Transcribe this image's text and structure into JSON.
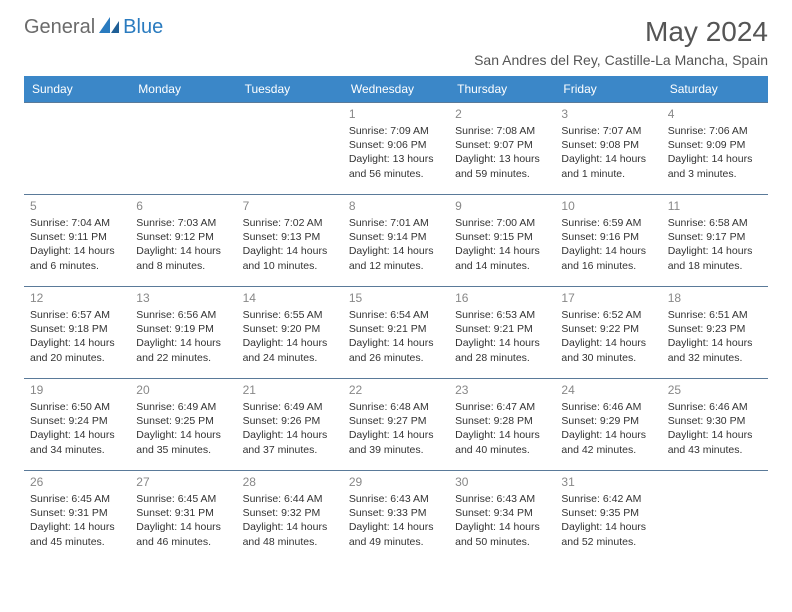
{
  "logo": {
    "text1": "General",
    "text2": "Blue"
  },
  "title": "May 2024",
  "subtitle": "San Andres del Rey, Castille-La Mancha, Spain",
  "colors": {
    "header_bg": "#3b87c8",
    "header_text": "#ffffff",
    "row_border": "#5a7a99",
    "day_num": "#888888",
    "body_text": "#333333",
    "logo_gray": "#6b6b6b",
    "logo_blue": "#2a7bbf",
    "title_color": "#555555"
  },
  "weekdays": [
    "Sunday",
    "Monday",
    "Tuesday",
    "Wednesday",
    "Thursday",
    "Friday",
    "Saturday"
  ],
  "weeks": [
    [
      null,
      null,
      null,
      {
        "day": "1",
        "sunrise": "7:09 AM",
        "sunset": "9:06 PM",
        "daylight": "13 hours and 56 minutes."
      },
      {
        "day": "2",
        "sunrise": "7:08 AM",
        "sunset": "9:07 PM",
        "daylight": "13 hours and 59 minutes."
      },
      {
        "day": "3",
        "sunrise": "7:07 AM",
        "sunset": "9:08 PM",
        "daylight": "14 hours and 1 minute."
      },
      {
        "day": "4",
        "sunrise": "7:06 AM",
        "sunset": "9:09 PM",
        "daylight": "14 hours and 3 minutes."
      }
    ],
    [
      {
        "day": "5",
        "sunrise": "7:04 AM",
        "sunset": "9:11 PM",
        "daylight": "14 hours and 6 minutes."
      },
      {
        "day": "6",
        "sunrise": "7:03 AM",
        "sunset": "9:12 PM",
        "daylight": "14 hours and 8 minutes."
      },
      {
        "day": "7",
        "sunrise": "7:02 AM",
        "sunset": "9:13 PM",
        "daylight": "14 hours and 10 minutes."
      },
      {
        "day": "8",
        "sunrise": "7:01 AM",
        "sunset": "9:14 PM",
        "daylight": "14 hours and 12 minutes."
      },
      {
        "day": "9",
        "sunrise": "7:00 AM",
        "sunset": "9:15 PM",
        "daylight": "14 hours and 14 minutes."
      },
      {
        "day": "10",
        "sunrise": "6:59 AM",
        "sunset": "9:16 PM",
        "daylight": "14 hours and 16 minutes."
      },
      {
        "day": "11",
        "sunrise": "6:58 AM",
        "sunset": "9:17 PM",
        "daylight": "14 hours and 18 minutes."
      }
    ],
    [
      {
        "day": "12",
        "sunrise": "6:57 AM",
        "sunset": "9:18 PM",
        "daylight": "14 hours and 20 minutes."
      },
      {
        "day": "13",
        "sunrise": "6:56 AM",
        "sunset": "9:19 PM",
        "daylight": "14 hours and 22 minutes."
      },
      {
        "day": "14",
        "sunrise": "6:55 AM",
        "sunset": "9:20 PM",
        "daylight": "14 hours and 24 minutes."
      },
      {
        "day": "15",
        "sunrise": "6:54 AM",
        "sunset": "9:21 PM",
        "daylight": "14 hours and 26 minutes."
      },
      {
        "day": "16",
        "sunrise": "6:53 AM",
        "sunset": "9:21 PM",
        "daylight": "14 hours and 28 minutes."
      },
      {
        "day": "17",
        "sunrise": "6:52 AM",
        "sunset": "9:22 PM",
        "daylight": "14 hours and 30 minutes."
      },
      {
        "day": "18",
        "sunrise": "6:51 AM",
        "sunset": "9:23 PM",
        "daylight": "14 hours and 32 minutes."
      }
    ],
    [
      {
        "day": "19",
        "sunrise": "6:50 AM",
        "sunset": "9:24 PM",
        "daylight": "14 hours and 34 minutes."
      },
      {
        "day": "20",
        "sunrise": "6:49 AM",
        "sunset": "9:25 PM",
        "daylight": "14 hours and 35 minutes."
      },
      {
        "day": "21",
        "sunrise": "6:49 AM",
        "sunset": "9:26 PM",
        "daylight": "14 hours and 37 minutes."
      },
      {
        "day": "22",
        "sunrise": "6:48 AM",
        "sunset": "9:27 PM",
        "daylight": "14 hours and 39 minutes."
      },
      {
        "day": "23",
        "sunrise": "6:47 AM",
        "sunset": "9:28 PM",
        "daylight": "14 hours and 40 minutes."
      },
      {
        "day": "24",
        "sunrise": "6:46 AM",
        "sunset": "9:29 PM",
        "daylight": "14 hours and 42 minutes."
      },
      {
        "day": "25",
        "sunrise": "6:46 AM",
        "sunset": "9:30 PM",
        "daylight": "14 hours and 43 minutes."
      }
    ],
    [
      {
        "day": "26",
        "sunrise": "6:45 AM",
        "sunset": "9:31 PM",
        "daylight": "14 hours and 45 minutes."
      },
      {
        "day": "27",
        "sunrise": "6:45 AM",
        "sunset": "9:31 PM",
        "daylight": "14 hours and 46 minutes."
      },
      {
        "day": "28",
        "sunrise": "6:44 AM",
        "sunset": "9:32 PM",
        "daylight": "14 hours and 48 minutes."
      },
      {
        "day": "29",
        "sunrise": "6:43 AM",
        "sunset": "9:33 PM",
        "daylight": "14 hours and 49 minutes."
      },
      {
        "day": "30",
        "sunrise": "6:43 AM",
        "sunset": "9:34 PM",
        "daylight": "14 hours and 50 minutes."
      },
      {
        "day": "31",
        "sunrise": "6:42 AM",
        "sunset": "9:35 PM",
        "daylight": "14 hours and 52 minutes."
      },
      null
    ]
  ],
  "labels": {
    "sunrise": "Sunrise:",
    "sunset": "Sunset:",
    "daylight": "Daylight:"
  }
}
